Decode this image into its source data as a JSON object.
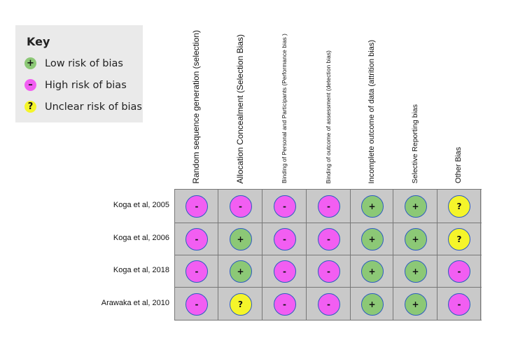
{
  "key": {
    "title": "Key",
    "items": [
      {
        "symbol": "+",
        "label": "Low risk of bias",
        "color": "#8cc876"
      },
      {
        "symbol": "–",
        "label": "High risk of bias",
        "color": "#f25ef2"
      },
      {
        "symbol": "?",
        "label": "Unclear risk of bias",
        "color": "#f5f52a"
      }
    ]
  },
  "columns": [
    "Random sequence generation (selection)",
    "Allocation Concealment (Selection Bias)",
    "Binding of Personal and Participants (Performance bias )",
    "Binding  of outcome of assessment (detection bias)",
    "Incomplete outcome of data (attrition bias)",
    "Selective Reporting bias",
    "Other Bias"
  ],
  "rows": [
    {
      "label": "Koga et al, 2005",
      "cells": [
        "-",
        "-",
        "-",
        "-",
        "+",
        "+",
        "?"
      ]
    },
    {
      "label": "Koga et al, 2006",
      "cells": [
        "-",
        "+",
        "-",
        "-",
        "+",
        "+",
        "?"
      ]
    },
    {
      "label": "Koga et al, 2018",
      "cells": [
        "-",
        "+",
        "-",
        "-",
        "+",
        "+",
        "-"
      ]
    },
    {
      "label": "Arawaka et al, 2010",
      "cells": [
        "-",
        "?",
        "-",
        "-",
        "+",
        "+",
        "-"
      ]
    }
  ],
  "symbols": {
    "+": {
      "glyph": "+",
      "class": "low"
    },
    "-": {
      "glyph": "-",
      "class": "high"
    },
    "?": {
      "glyph": "?",
      "class": "unclear"
    }
  }
}
